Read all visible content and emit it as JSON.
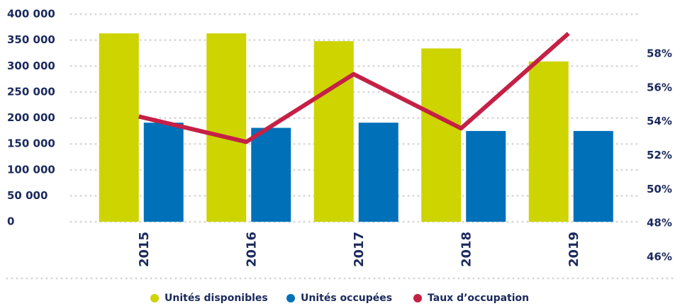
{
  "chart_data": {
    "type": "bar-line",
    "categories": [
      "2015",
      "2016",
      "2017",
      "2018",
      "2019"
    ],
    "series": [
      {
        "name": "Unités disponibles",
        "color": "#cdd400",
        "values": [
          363000,
          363000,
          348000,
          334000,
          309000
        ]
      },
      {
        "name": "Unités occupées",
        "color": "#0070b8",
        "values": [
          191000,
          181000,
          191000,
          175000,
          175000
        ]
      },
      {
        "name": "Taux d’occupation",
        "color": "#c52046",
        "axis": "y2",
        "type": "line",
        "values": [
          54.3,
          52.8,
          56.8,
          53.6,
          59.2
        ]
      }
    ],
    "ylim": [
      -68000,
      400000
    ],
    "yticks": [
      {
        "value": 0,
        "label": "0"
      },
      {
        "value": 50000,
        "label": "50 000"
      },
      {
        "value": 100000,
        "label": "100 000"
      },
      {
        "value": 150000,
        "label": "150 000"
      },
      {
        "value": 200000,
        "label": "200 000"
      },
      {
        "value": 250000,
        "label": "250 000"
      },
      {
        "value": 300000,
        "label": "300 000"
      },
      {
        "value": 350000,
        "label": "350 000"
      },
      {
        "value": 400000,
        "label": "400 000"
      }
    ],
    "y2lim": [
      46,
      60.34
    ],
    "y2ticks": [
      {
        "value": 46,
        "label": "46%"
      },
      {
        "value": 48,
        "label": "48%"
      },
      {
        "value": 50,
        "label": "50%"
      },
      {
        "value": 52,
        "label": "52%"
      },
      {
        "value": 54,
        "label": "54%"
      },
      {
        "value": 56,
        "label": "56%"
      },
      {
        "value": 58,
        "label": "58%"
      }
    ],
    "grid": true,
    "legend": "bottom"
  }
}
